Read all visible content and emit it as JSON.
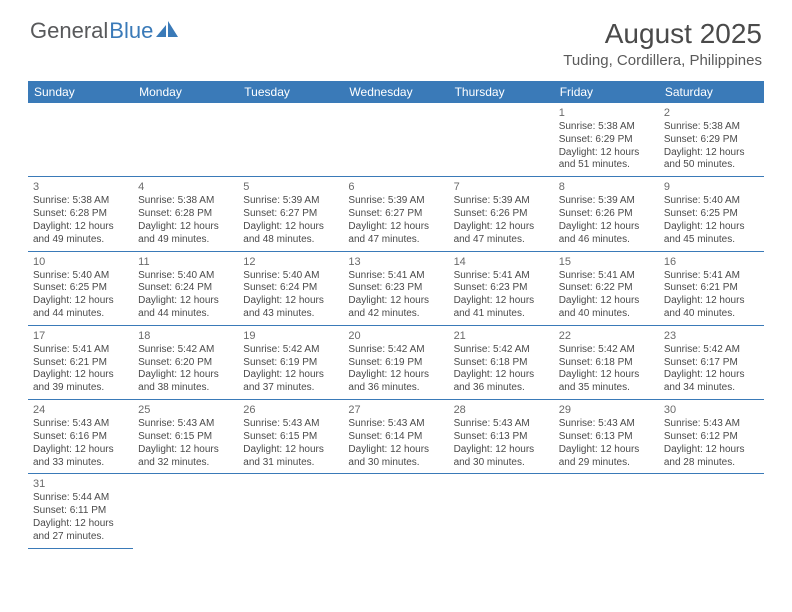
{
  "logo": {
    "text1": "General",
    "text2": "Blue"
  },
  "title": {
    "month": "August 2025",
    "location": "Tuding, Cordillera, Philippines"
  },
  "colors": {
    "header_bg": "#3a7ab8",
    "header_text": "#ffffff",
    "text": "#4a4a4a",
    "border": "#3a7ab8"
  },
  "day_names": [
    "Sunday",
    "Monday",
    "Tuesday",
    "Wednesday",
    "Thursday",
    "Friday",
    "Saturday"
  ],
  "weeks": [
    [
      {
        "n": "",
        "sr": "",
        "ss": "",
        "dl": ""
      },
      {
        "n": "",
        "sr": "",
        "ss": "",
        "dl": ""
      },
      {
        "n": "",
        "sr": "",
        "ss": "",
        "dl": ""
      },
      {
        "n": "",
        "sr": "",
        "ss": "",
        "dl": ""
      },
      {
        "n": "",
        "sr": "",
        "ss": "",
        "dl": ""
      },
      {
        "n": "1",
        "sr": "Sunrise: 5:38 AM",
        "ss": "Sunset: 6:29 PM",
        "dl": "Daylight: 12 hours and 51 minutes."
      },
      {
        "n": "2",
        "sr": "Sunrise: 5:38 AM",
        "ss": "Sunset: 6:29 PM",
        "dl": "Daylight: 12 hours and 50 minutes."
      }
    ],
    [
      {
        "n": "3",
        "sr": "Sunrise: 5:38 AM",
        "ss": "Sunset: 6:28 PM",
        "dl": "Daylight: 12 hours and 49 minutes."
      },
      {
        "n": "4",
        "sr": "Sunrise: 5:38 AM",
        "ss": "Sunset: 6:28 PM",
        "dl": "Daylight: 12 hours and 49 minutes."
      },
      {
        "n": "5",
        "sr": "Sunrise: 5:39 AM",
        "ss": "Sunset: 6:27 PM",
        "dl": "Daylight: 12 hours and 48 minutes."
      },
      {
        "n": "6",
        "sr": "Sunrise: 5:39 AM",
        "ss": "Sunset: 6:27 PM",
        "dl": "Daylight: 12 hours and 47 minutes."
      },
      {
        "n": "7",
        "sr": "Sunrise: 5:39 AM",
        "ss": "Sunset: 6:26 PM",
        "dl": "Daylight: 12 hours and 47 minutes."
      },
      {
        "n": "8",
        "sr": "Sunrise: 5:39 AM",
        "ss": "Sunset: 6:26 PM",
        "dl": "Daylight: 12 hours and 46 minutes."
      },
      {
        "n": "9",
        "sr": "Sunrise: 5:40 AM",
        "ss": "Sunset: 6:25 PM",
        "dl": "Daylight: 12 hours and 45 minutes."
      }
    ],
    [
      {
        "n": "10",
        "sr": "Sunrise: 5:40 AM",
        "ss": "Sunset: 6:25 PM",
        "dl": "Daylight: 12 hours and 44 minutes."
      },
      {
        "n": "11",
        "sr": "Sunrise: 5:40 AM",
        "ss": "Sunset: 6:24 PM",
        "dl": "Daylight: 12 hours and 44 minutes."
      },
      {
        "n": "12",
        "sr": "Sunrise: 5:40 AM",
        "ss": "Sunset: 6:24 PM",
        "dl": "Daylight: 12 hours and 43 minutes."
      },
      {
        "n": "13",
        "sr": "Sunrise: 5:41 AM",
        "ss": "Sunset: 6:23 PM",
        "dl": "Daylight: 12 hours and 42 minutes."
      },
      {
        "n": "14",
        "sr": "Sunrise: 5:41 AM",
        "ss": "Sunset: 6:23 PM",
        "dl": "Daylight: 12 hours and 41 minutes."
      },
      {
        "n": "15",
        "sr": "Sunrise: 5:41 AM",
        "ss": "Sunset: 6:22 PM",
        "dl": "Daylight: 12 hours and 40 minutes."
      },
      {
        "n": "16",
        "sr": "Sunrise: 5:41 AM",
        "ss": "Sunset: 6:21 PM",
        "dl": "Daylight: 12 hours and 40 minutes."
      }
    ],
    [
      {
        "n": "17",
        "sr": "Sunrise: 5:41 AM",
        "ss": "Sunset: 6:21 PM",
        "dl": "Daylight: 12 hours and 39 minutes."
      },
      {
        "n": "18",
        "sr": "Sunrise: 5:42 AM",
        "ss": "Sunset: 6:20 PM",
        "dl": "Daylight: 12 hours and 38 minutes."
      },
      {
        "n": "19",
        "sr": "Sunrise: 5:42 AM",
        "ss": "Sunset: 6:19 PM",
        "dl": "Daylight: 12 hours and 37 minutes."
      },
      {
        "n": "20",
        "sr": "Sunrise: 5:42 AM",
        "ss": "Sunset: 6:19 PM",
        "dl": "Daylight: 12 hours and 36 minutes."
      },
      {
        "n": "21",
        "sr": "Sunrise: 5:42 AM",
        "ss": "Sunset: 6:18 PM",
        "dl": "Daylight: 12 hours and 36 minutes."
      },
      {
        "n": "22",
        "sr": "Sunrise: 5:42 AM",
        "ss": "Sunset: 6:18 PM",
        "dl": "Daylight: 12 hours and 35 minutes."
      },
      {
        "n": "23",
        "sr": "Sunrise: 5:42 AM",
        "ss": "Sunset: 6:17 PM",
        "dl": "Daylight: 12 hours and 34 minutes."
      }
    ],
    [
      {
        "n": "24",
        "sr": "Sunrise: 5:43 AM",
        "ss": "Sunset: 6:16 PM",
        "dl": "Daylight: 12 hours and 33 minutes."
      },
      {
        "n": "25",
        "sr": "Sunrise: 5:43 AM",
        "ss": "Sunset: 6:15 PM",
        "dl": "Daylight: 12 hours and 32 minutes."
      },
      {
        "n": "26",
        "sr": "Sunrise: 5:43 AM",
        "ss": "Sunset: 6:15 PM",
        "dl": "Daylight: 12 hours and 31 minutes."
      },
      {
        "n": "27",
        "sr": "Sunrise: 5:43 AM",
        "ss": "Sunset: 6:14 PM",
        "dl": "Daylight: 12 hours and 30 minutes."
      },
      {
        "n": "28",
        "sr": "Sunrise: 5:43 AM",
        "ss": "Sunset: 6:13 PM",
        "dl": "Daylight: 12 hours and 30 minutes."
      },
      {
        "n": "29",
        "sr": "Sunrise: 5:43 AM",
        "ss": "Sunset: 6:13 PM",
        "dl": "Daylight: 12 hours and 29 minutes."
      },
      {
        "n": "30",
        "sr": "Sunrise: 5:43 AM",
        "ss": "Sunset: 6:12 PM",
        "dl": "Daylight: 12 hours and 28 minutes."
      }
    ],
    [
      {
        "n": "31",
        "sr": "Sunrise: 5:44 AM",
        "ss": "Sunset: 6:11 PM",
        "dl": "Daylight: 12 hours and 27 minutes."
      },
      {
        "n": "",
        "sr": "",
        "ss": "",
        "dl": ""
      },
      {
        "n": "",
        "sr": "",
        "ss": "",
        "dl": ""
      },
      {
        "n": "",
        "sr": "",
        "ss": "",
        "dl": ""
      },
      {
        "n": "",
        "sr": "",
        "ss": "",
        "dl": ""
      },
      {
        "n": "",
        "sr": "",
        "ss": "",
        "dl": ""
      },
      {
        "n": "",
        "sr": "",
        "ss": "",
        "dl": ""
      }
    ]
  ]
}
